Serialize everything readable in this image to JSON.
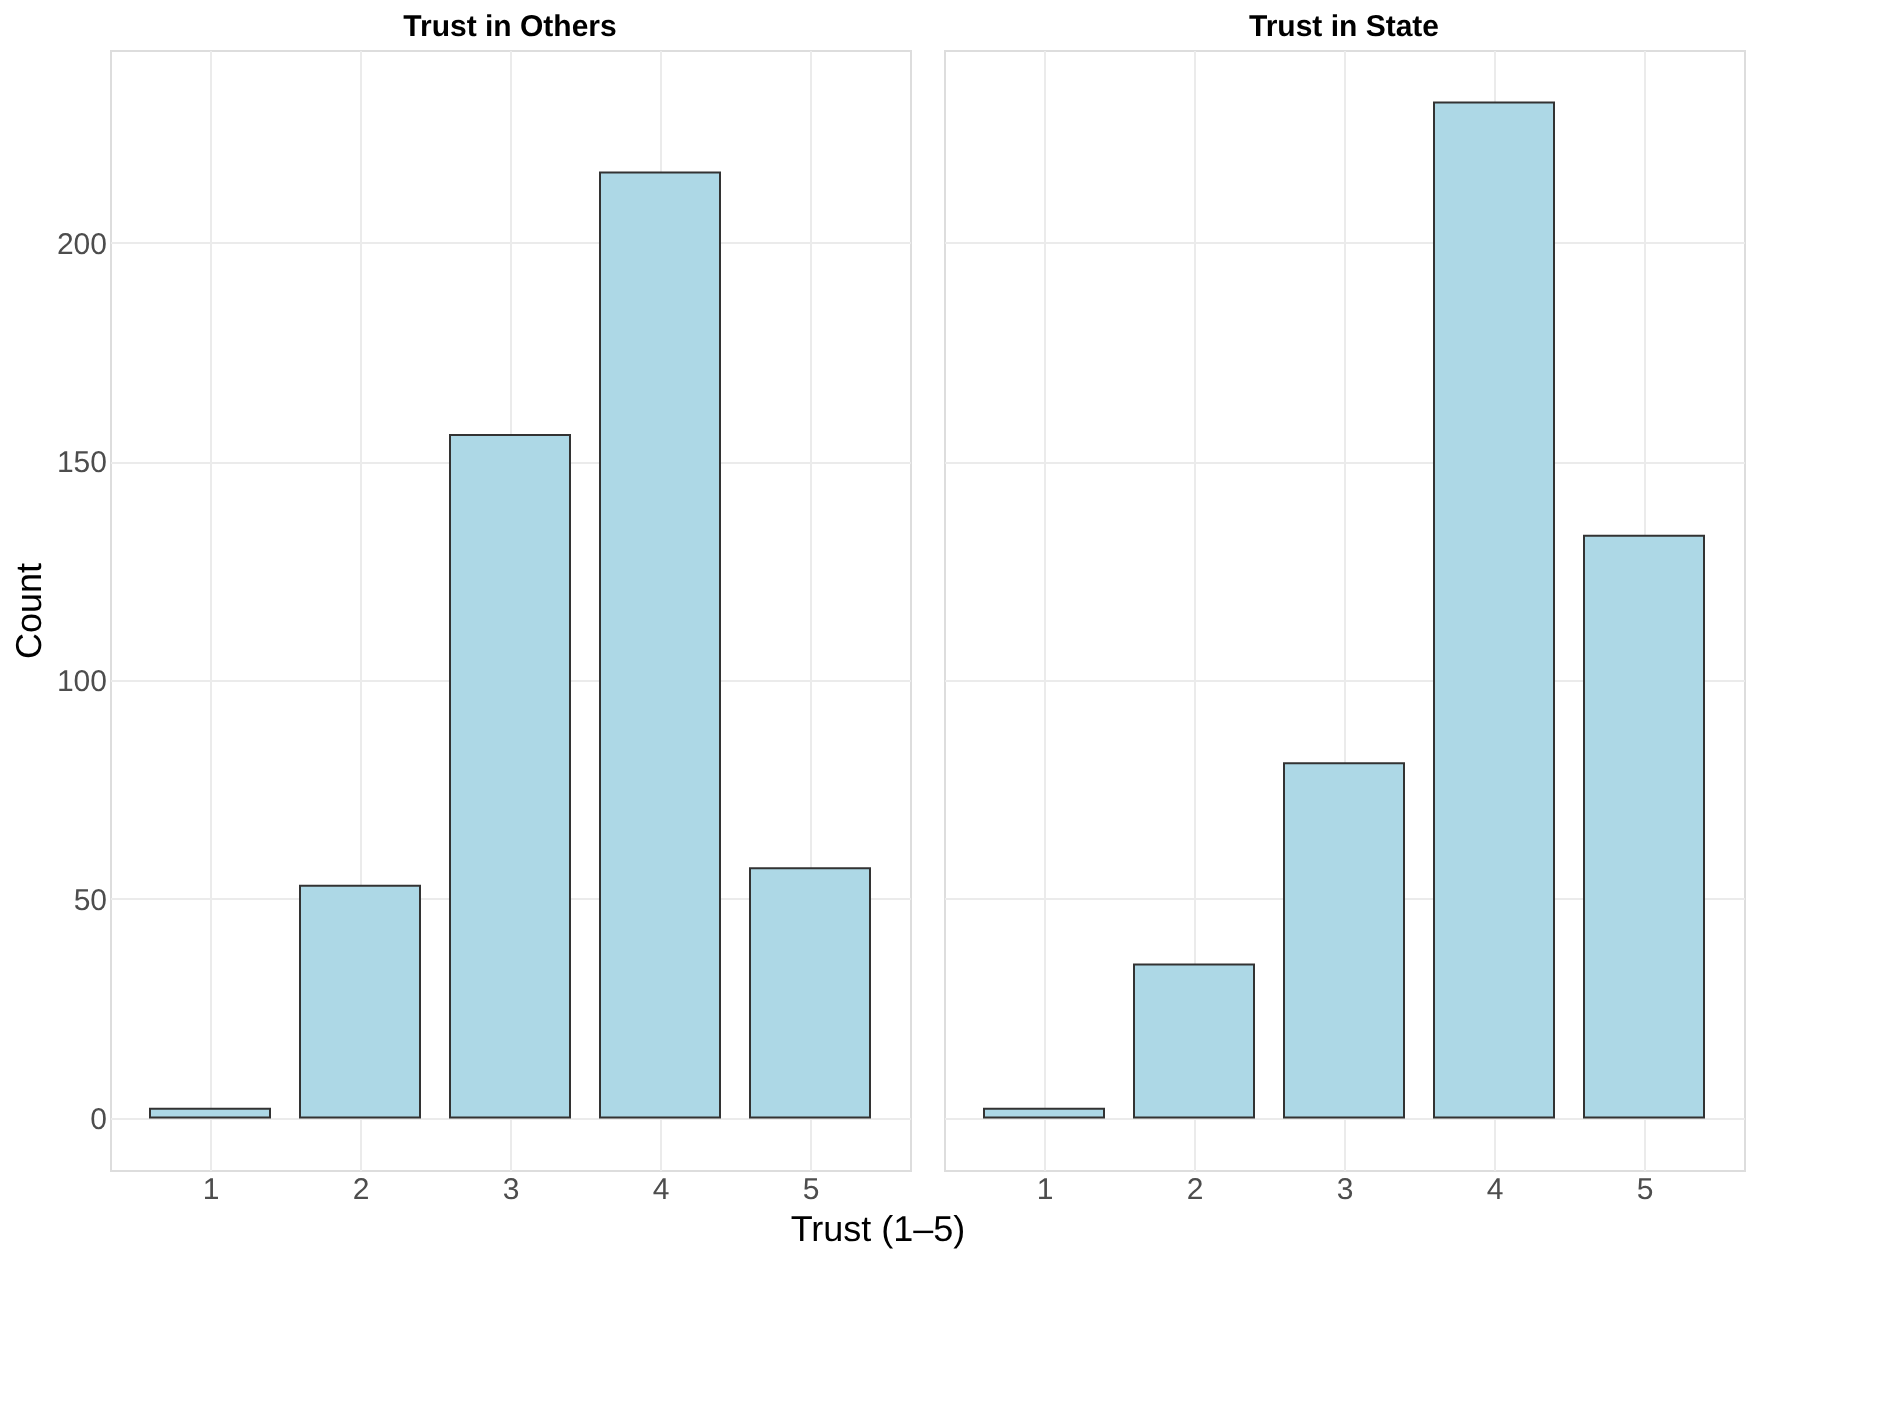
{
  "chart_data": [
    {
      "type": "bar",
      "title": "Trust in Others",
      "ylabel": "Count",
      "xlabel": "Trust (1–5)",
      "categories": [
        "1",
        "2",
        "3",
        "4",
        "5"
      ],
      "values": [
        2,
        53,
        156,
        216,
        57
      ],
      "color": "#add8e6",
      "ylim": [
        -12,
        244
      ],
      "yticks": [
        0,
        50,
        100,
        150,
        200
      ],
      "grid": true
    },
    {
      "type": "bar",
      "title": "Trust in State",
      "categories": [
        "1",
        "2",
        "3",
        "4",
        "5"
      ],
      "values": [
        2,
        35,
        81,
        232,
        133
      ],
      "color": "#add8e6",
      "ylim": [
        -12,
        244
      ],
      "yticks": [
        0,
        50,
        100,
        150,
        200
      ],
      "grid": true,
      "tick_labels": "x"
    }
  ]
}
